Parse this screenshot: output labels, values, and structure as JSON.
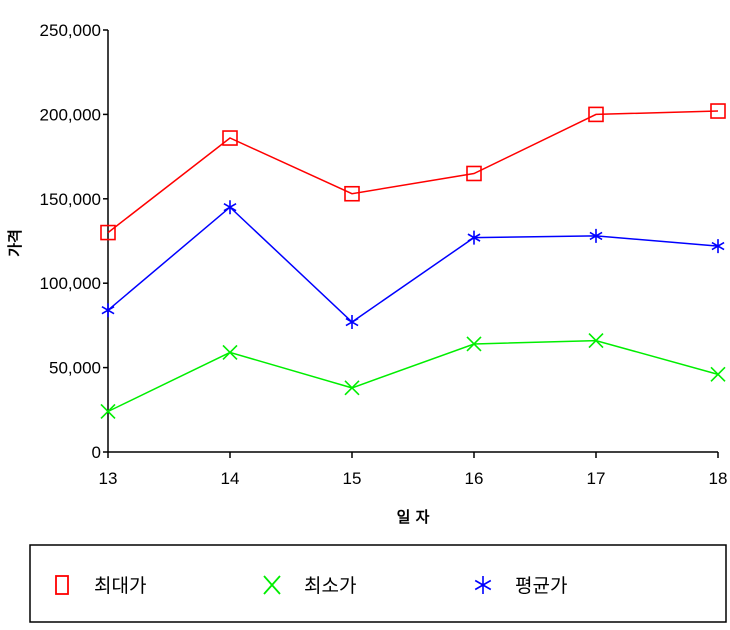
{
  "chart_data": {
    "type": "line",
    "title": "",
    "xlabel": "일 자",
    "ylabel": "가격",
    "categories": [
      "13",
      "14",
      "15",
      "16",
      "17",
      "18"
    ],
    "ylim": [
      0,
      250000
    ],
    "yticks": [
      0,
      50000,
      100000,
      150000,
      200000,
      250000
    ],
    "ytick_labels": [
      "0",
      "50,000",
      "100,000",
      "150,000",
      "200,000",
      "250,000"
    ],
    "grid": false,
    "legend_position": "bottom",
    "series": [
      {
        "name": "최대가",
        "marker": "square",
        "color": "#ff0000",
        "values": [
          130000,
          186000,
          153000,
          165000,
          200000,
          202000
        ]
      },
      {
        "name": "최소가",
        "marker": "x",
        "color": "#00ee00",
        "values": [
          24000,
          59000,
          38000,
          64000,
          66000,
          46000
        ]
      },
      {
        "name": "평균가",
        "marker": "asterisk",
        "color": "#0000ff",
        "values": [
          84000,
          145000,
          77000,
          127000,
          128000,
          122000
        ]
      }
    ]
  }
}
